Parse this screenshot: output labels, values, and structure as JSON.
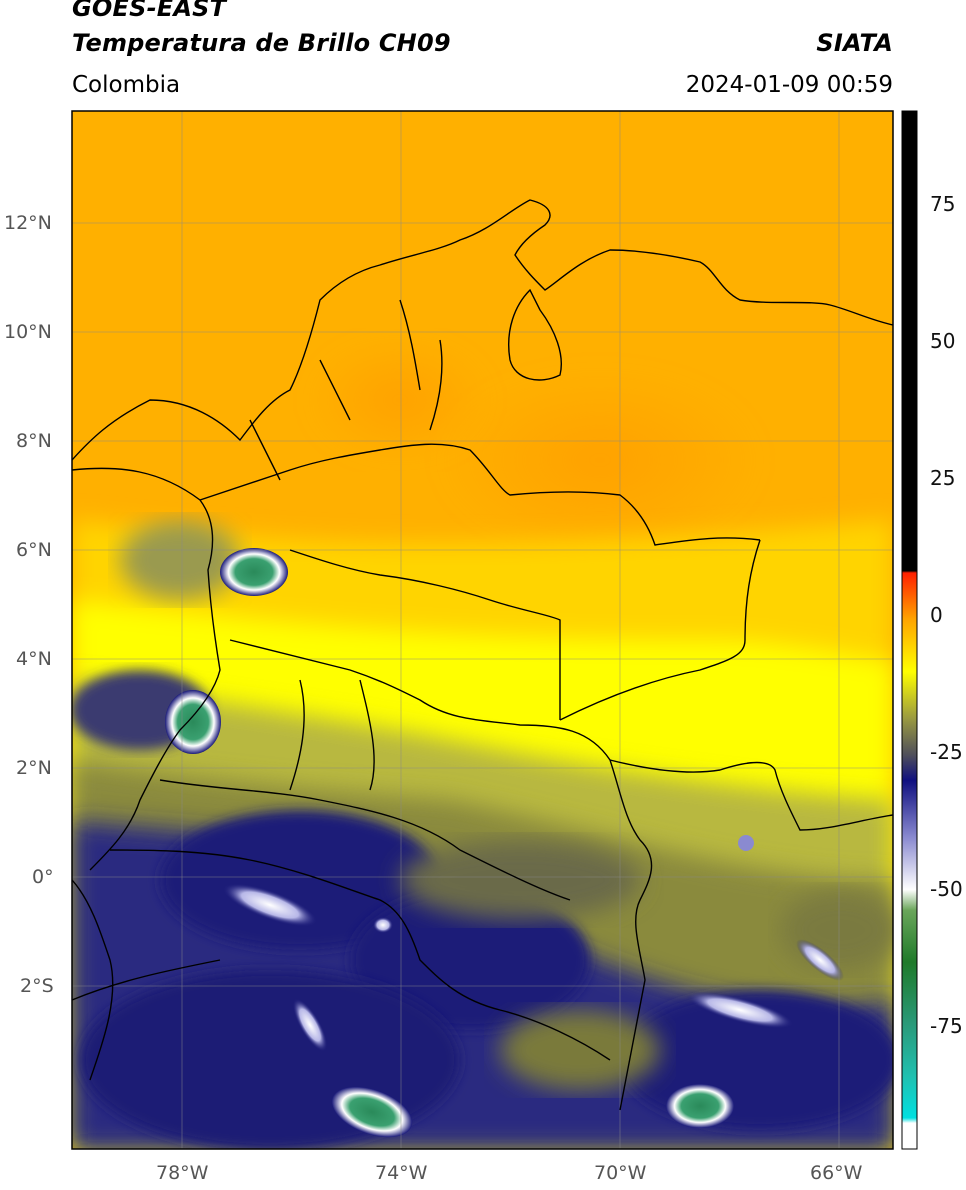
{
  "header": {
    "title1": "GOES-EAST",
    "title2": "Temperatura de Brillo CH09",
    "source": "SIATA",
    "region": "Colombia",
    "datetime": "2024-01-09 00:59"
  },
  "axes": {
    "lat_labels": [
      {
        "lat": 12,
        "label": "12°N"
      },
      {
        "lat": 10,
        "label": "10°N"
      },
      {
        "lat": 8,
        "label": "8°N"
      },
      {
        "lat": 6,
        "label": "6°N"
      },
      {
        "lat": 4,
        "label": "4°N"
      },
      {
        "lat": 2,
        "label": "2°N"
      },
      {
        "lat": 0,
        "label": "0°"
      },
      {
        "lat": -2,
        "label": "2°S"
      }
    ],
    "lon_labels": [
      {
        "lon": -78,
        "label": "78°W"
      },
      {
        "lon": -74,
        "label": "74°W"
      },
      {
        "lon": -70,
        "label": "70°W"
      },
      {
        "lon": -66,
        "label": "66°W"
      }
    ],
    "lon_range": [
      -80,
      -65
    ],
    "lat_range": [
      -5,
      14
    ]
  },
  "colorbar": {
    "ticks": [
      {
        "value": 75,
        "label": "75"
      },
      {
        "value": 50,
        "label": "50"
      },
      {
        "value": 25,
        "label": "25"
      },
      {
        "value": 0,
        "label": "0"
      },
      {
        "value": -25,
        "label": "-25"
      },
      {
        "value": -50,
        "label": "-50"
      },
      {
        "value": -75,
        "label": "-75"
      }
    ],
    "range": [
      -95,
      90
    ],
    "stops": [
      {
        "value": -95,
        "color": "#ffffff"
      },
      {
        "value": -90,
        "color": "#00e0e0"
      },
      {
        "value": -80,
        "color": "#2a9a7a"
      },
      {
        "value": -70,
        "color": "#1f7a2a"
      },
      {
        "value": -60,
        "color": "#6aa65a"
      },
      {
        "value": -52,
        "color": "#ffffff"
      },
      {
        "value": -42,
        "color": "#8a8ad0"
      },
      {
        "value": -30,
        "color": "#101080"
      },
      {
        "value": -25,
        "color": "#50505a"
      },
      {
        "value": -18,
        "color": "#9a9a40"
      },
      {
        "value": -10,
        "color": "#ffff00"
      },
      {
        "value": 0,
        "color": "#ffa500"
      },
      {
        "value": 8,
        "color": "#ff2000"
      },
      {
        "value": 8.5,
        "color": "#000000"
      },
      {
        "value": 90,
        "color": "#000000"
      }
    ]
  },
  "colors": {
    "warm": "#ffb000",
    "mid": "#ffee00",
    "cold": "#1c1c78",
    "coldest": "#3a9a5a"
  }
}
